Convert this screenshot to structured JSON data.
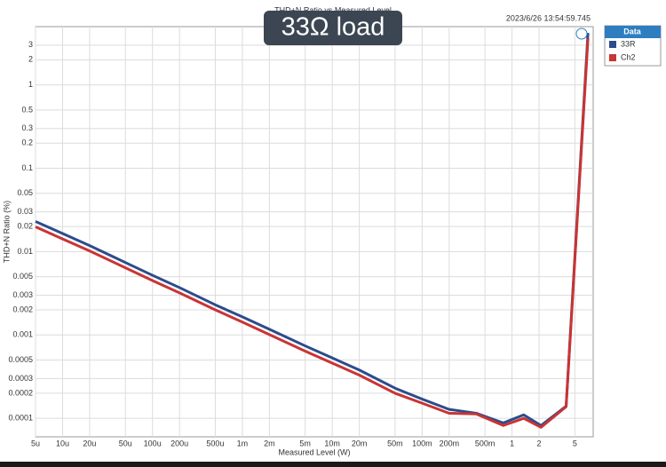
{
  "chart_data": {
    "type": "line",
    "title": "THD+N Ratio vs Measured Level",
    "overlay_label": "33Ω load",
    "timestamp": "2023/6/26 13:54:59.745",
    "x_label": "Measured Level (W)",
    "y_label": "THD+N Ratio (%)",
    "xscale": "log",
    "yscale": "log",
    "grid": true,
    "legend": "right",
    "legend_title": "Data",
    "x": [
      5e-06,
      1e-05,
      2e-05,
      5e-05,
      0.0001,
      0.0002,
      0.0005,
      0.001,
      0.002,
      0.005,
      0.01,
      0.02,
      0.05,
      0.1,
      0.2,
      0.4,
      0.8,
      1.35,
      2.1,
      4,
      7
    ],
    "series": [
      {
        "name": "33R",
        "color": "#2b4c8c",
        "values": [
          0.023,
          0.0165,
          0.0118,
          0.0074,
          0.0052,
          0.0037,
          0.0023,
          0.00165,
          0.00117,
          0.00074,
          0.00053,
          0.00038,
          0.00023,
          0.00017,
          0.000128,
          0.000115,
          8.8e-05,
          0.00011,
          8.2e-05,
          0.00014,
          4.2
        ]
      },
      {
        "name": "Ch2",
        "color": "#c93434",
        "values": [
          0.0198,
          0.0142,
          0.0102,
          0.0064,
          0.0045,
          0.0032,
          0.002,
          0.00143,
          0.00101,
          0.00064,
          0.00046,
          0.00033,
          0.0002,
          0.000152,
          0.000115,
          0.000113,
          8.2e-05,
          0.0001,
          7.8e-05,
          0.000138,
          3.6
        ]
      }
    ],
    "xlim": [
      5e-06,
      8
    ],
    "ylim": [
      6e-05,
      5
    ],
    "xticks": [
      {
        "value": 5e-06,
        "label": "5u"
      },
      {
        "value": 1e-05,
        "label": "10u"
      },
      {
        "value": 2e-05,
        "label": "20u"
      },
      {
        "value": 5e-05,
        "label": "50u"
      },
      {
        "value": 0.0001,
        "label": "100u"
      },
      {
        "value": 0.0002,
        "label": "200u"
      },
      {
        "value": 0.0005,
        "label": "500u"
      },
      {
        "value": 0.001,
        "label": "1m"
      },
      {
        "value": 0.002,
        "label": "2m"
      },
      {
        "value": 0.005,
        "label": "5m"
      },
      {
        "value": 0.01,
        "label": "10m"
      },
      {
        "value": 0.02,
        "label": "20m"
      },
      {
        "value": 0.05,
        "label": "50m"
      },
      {
        "value": 0.1,
        "label": "100m"
      },
      {
        "value": 0.2,
        "label": "200m"
      },
      {
        "value": 0.5,
        "label": "500m"
      },
      1,
      2,
      5
    ],
    "yticks": [
      0.0001,
      0.0002,
      0.0003,
      0.0005,
      0.001,
      0.002,
      0.003,
      0.005,
      0.01,
      0.02,
      0.03,
      0.05,
      0.1,
      0.2,
      0.3,
      0.5,
      1,
      2,
      3
    ]
  }
}
